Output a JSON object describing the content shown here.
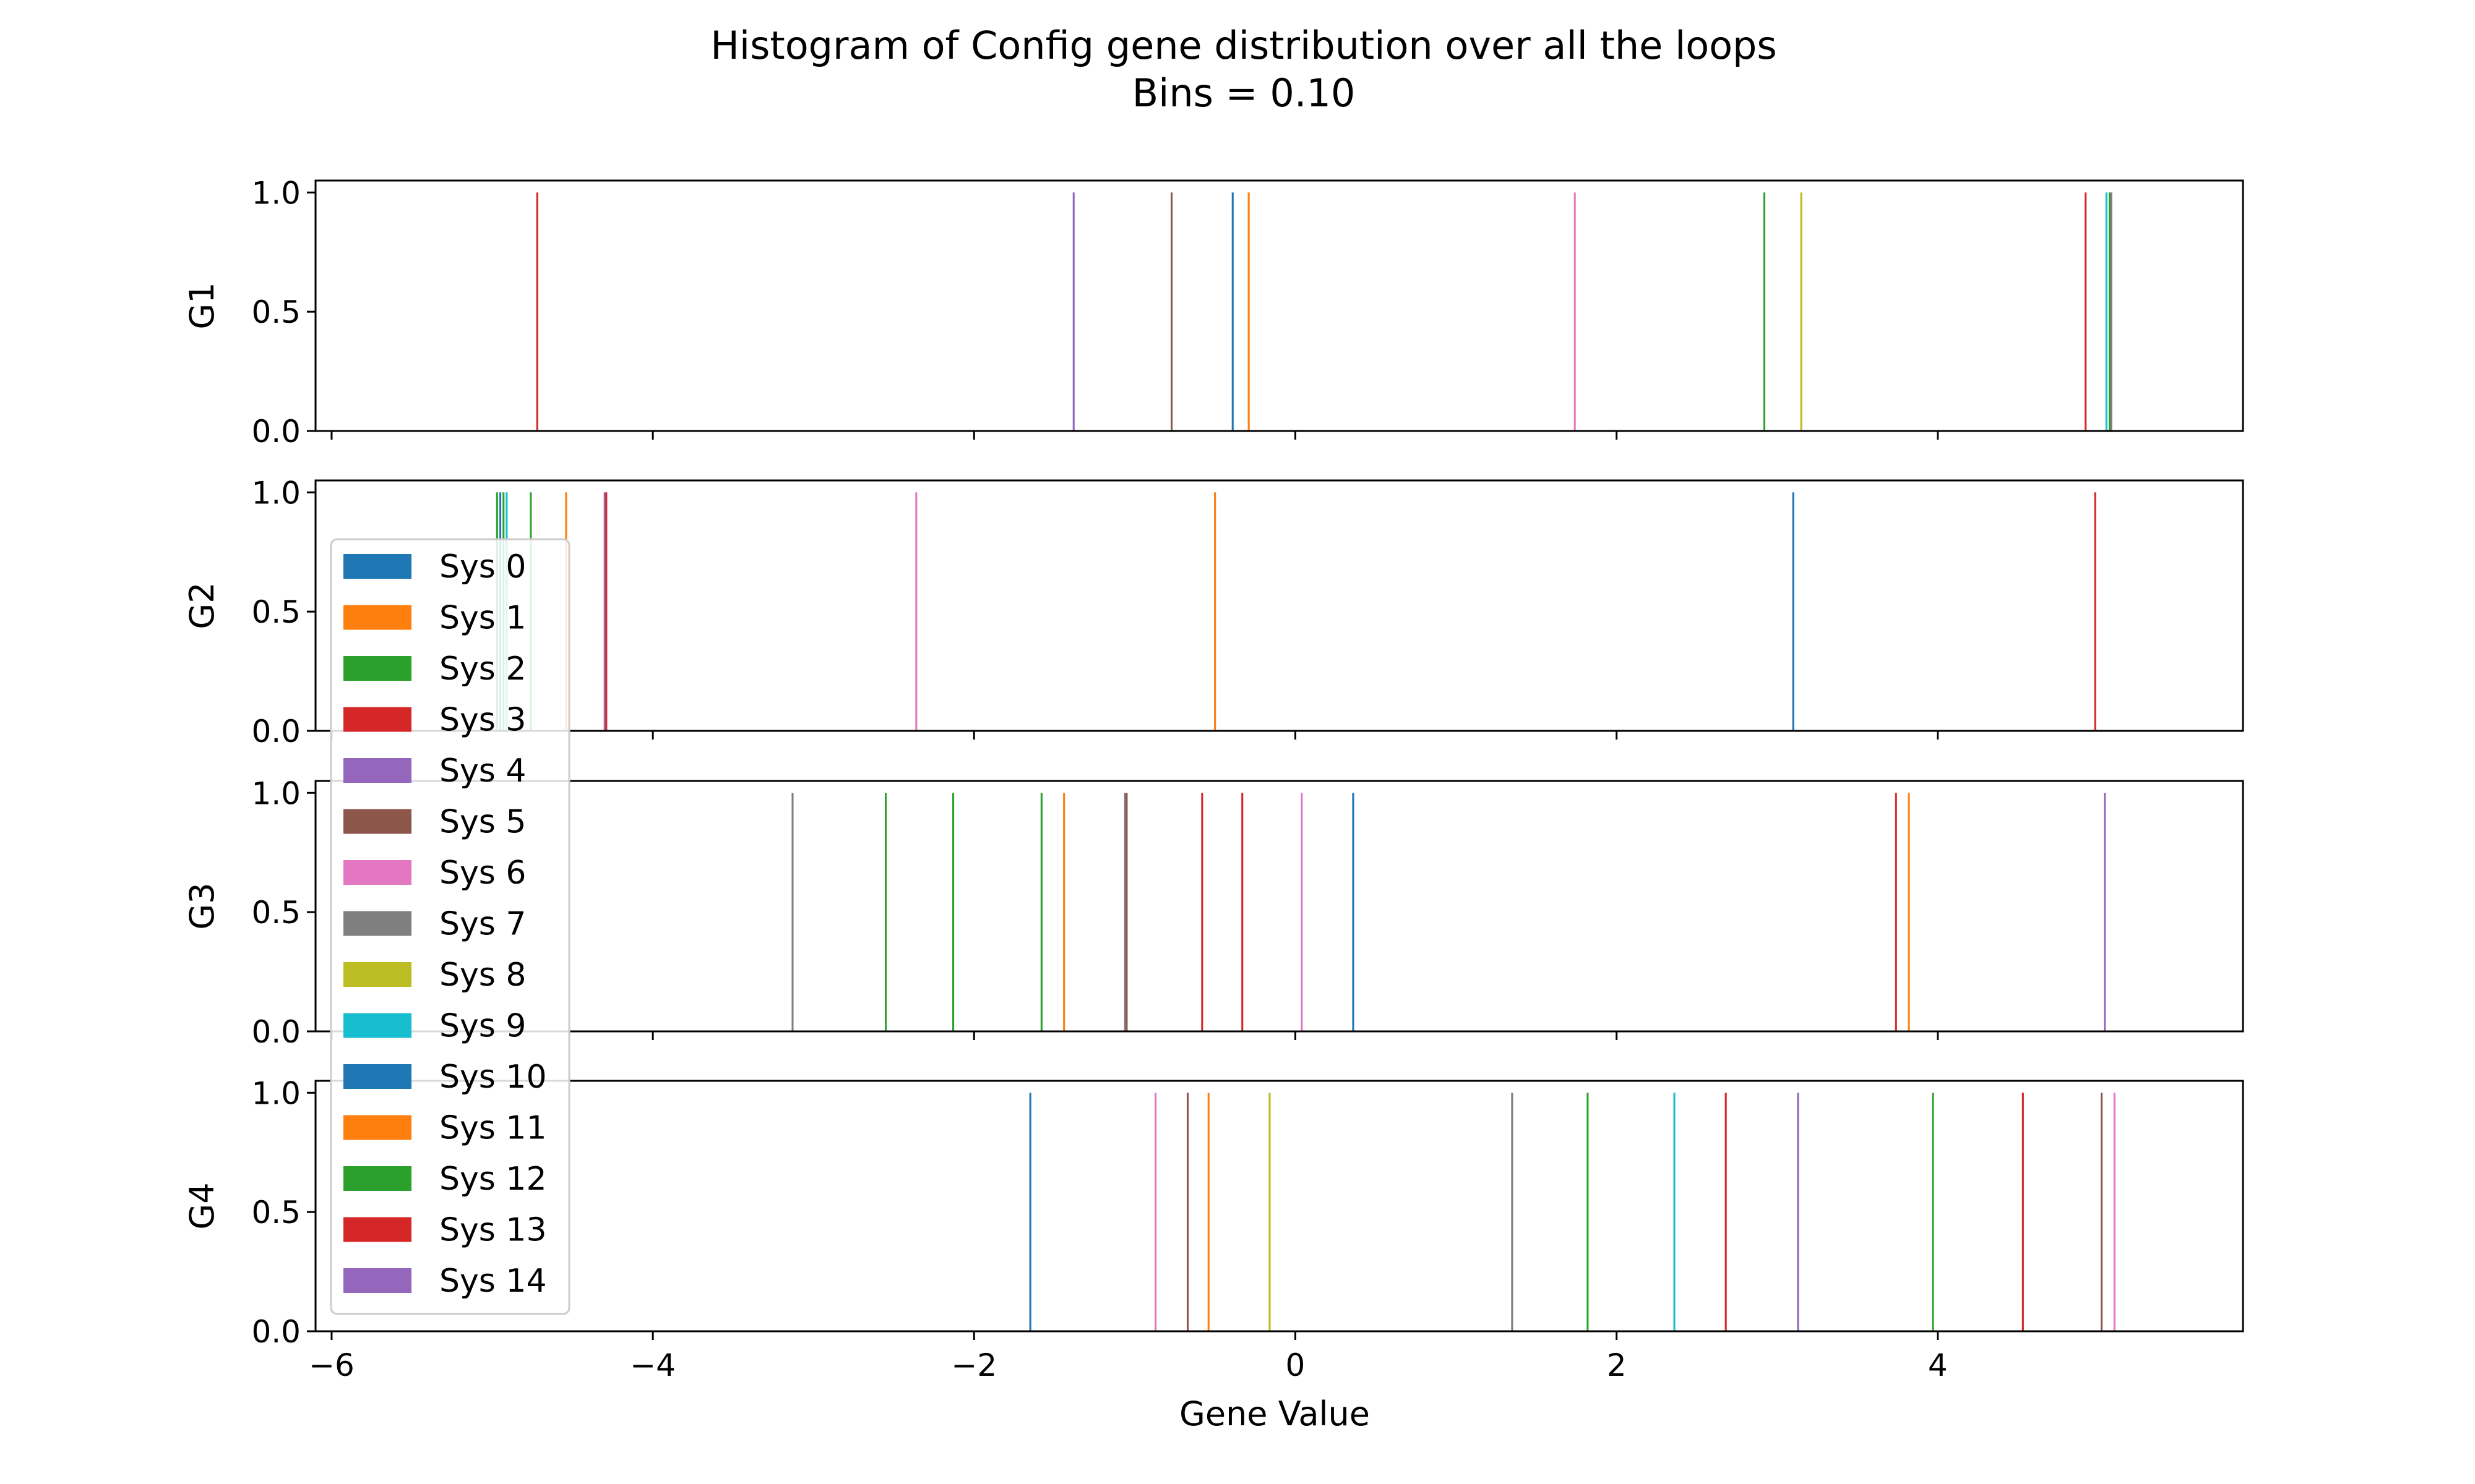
{
  "chart_data": {
    "type": "histogram",
    "title": "Histogram of Config gene distribution over all the loops",
    "subtitle": "Bins = 0.10",
    "xlabel": "Gene Value",
    "xlim": [
      -6.1,
      5.9
    ],
    "ylim": [
      0,
      1.05
    ],
    "x_ticks": [
      -6,
      -4,
      -2,
      0,
      2,
      4
    ],
    "x_tick_labels": [
      "−6",
      "−4",
      "−2",
      "0",
      "2",
      "4"
    ],
    "y_ticks": [
      0,
      0.5,
      1.0
    ],
    "y_tick_labels": [
      "0.0",
      "0.5",
      "1.0"
    ],
    "legend_placement": "left",
    "series": [
      {
        "name": "Sys 0",
        "color": "#1f77b4"
      },
      {
        "name": "Sys 1",
        "color": "#ff7f0e"
      },
      {
        "name": "Sys 2",
        "color": "#2ca02c"
      },
      {
        "name": "Sys 3",
        "color": "#d62728"
      },
      {
        "name": "Sys 4",
        "color": "#9467bd"
      },
      {
        "name": "Sys 5",
        "color": "#8c564b"
      },
      {
        "name": "Sys 6",
        "color": "#e377c2"
      },
      {
        "name": "Sys 7",
        "color": "#7f7f7f"
      },
      {
        "name": "Sys 8",
        "color": "#bcbd22"
      },
      {
        "name": "Sys 9",
        "color": "#17becf"
      },
      {
        "name": "Sys 10",
        "color": "#1f77b4"
      },
      {
        "name": "Sys 11",
        "color": "#ff7f0e"
      },
      {
        "name": "Sys 12",
        "color": "#2ca02c"
      },
      {
        "name": "Sys 13",
        "color": "#d62728"
      },
      {
        "name": "Sys 14",
        "color": "#9467bd"
      }
    ],
    "subplots": [
      {
        "ylabel": "G1",
        "values": [
          {
            "series": 3,
            "x": -4.72,
            "count": 1
          },
          {
            "series": 4,
            "x": -1.38,
            "count": 1
          },
          {
            "series": 5,
            "x": -0.77,
            "count": 1
          },
          {
            "series": 0,
            "x": -0.39,
            "count": 1
          },
          {
            "series": 1,
            "x": -0.29,
            "count": 1
          },
          {
            "series": 6,
            "x": 1.74,
            "count": 1
          },
          {
            "series": 2,
            "x": 2.92,
            "count": 1
          },
          {
            "series": 8,
            "x": 3.15,
            "count": 1
          },
          {
            "series": 13,
            "x": 4.92,
            "count": 1
          },
          {
            "series": 9,
            "x": 5.05,
            "count": 1
          },
          {
            "series": 12,
            "x": 5.07,
            "count": 1
          },
          {
            "series": 7,
            "x": 5.08,
            "count": 1
          }
        ]
      },
      {
        "ylabel": "G2",
        "values": [
          {
            "series": 2,
            "x": -4.97,
            "count": 1
          },
          {
            "series": 0,
            "x": -4.95,
            "count": 1
          },
          {
            "series": 12,
            "x": -4.93,
            "count": 1
          },
          {
            "series": 9,
            "x": -4.91,
            "count": 1
          },
          {
            "series": 2,
            "x": -4.76,
            "count": 1
          },
          {
            "series": 1,
            "x": -4.54,
            "count": 1
          },
          {
            "series": 4,
            "x": -4.3,
            "count": 1
          },
          {
            "series": 3,
            "x": -4.29,
            "count": 1
          },
          {
            "series": 6,
            "x": -2.36,
            "count": 1
          },
          {
            "series": 1,
            "x": -0.5,
            "count": 1
          },
          {
            "series": 0,
            "x": 3.1,
            "count": 1
          },
          {
            "series": 13,
            "x": 4.98,
            "count": 1
          }
        ]
      },
      {
        "ylabel": "G3",
        "values": [
          {
            "series": 7,
            "x": -3.13,
            "count": 1
          },
          {
            "series": 2,
            "x": -2.55,
            "count": 1
          },
          {
            "series": 12,
            "x": -2.13,
            "count": 1
          },
          {
            "series": 2,
            "x": -1.58,
            "count": 1
          },
          {
            "series": 1,
            "x": -1.44,
            "count": 1
          },
          {
            "series": 7,
            "x": -1.06,
            "count": 1
          },
          {
            "series": 5,
            "x": -1.05,
            "count": 1
          },
          {
            "series": 3,
            "x": -0.58,
            "count": 1
          },
          {
            "series": 13,
            "x": -0.33,
            "count": 1
          },
          {
            "series": 6,
            "x": 0.04,
            "count": 1
          },
          {
            "series": 0,
            "x": 0.36,
            "count": 1
          },
          {
            "series": 13,
            "x": 3.74,
            "count": 1
          },
          {
            "series": 1,
            "x": 3.82,
            "count": 1
          },
          {
            "series": 4,
            "x": 5.04,
            "count": 1
          }
        ]
      },
      {
        "ylabel": "G4",
        "values": [
          {
            "series": 0,
            "x": -1.65,
            "count": 1
          },
          {
            "series": 6,
            "x": -0.87,
            "count": 1
          },
          {
            "series": 5,
            "x": -0.67,
            "count": 1
          },
          {
            "series": 1,
            "x": -0.54,
            "count": 1
          },
          {
            "series": 8,
            "x": -0.16,
            "count": 1
          },
          {
            "series": 7,
            "x": 1.35,
            "count": 1
          },
          {
            "series": 2,
            "x": 1.82,
            "count": 1
          },
          {
            "series": 9,
            "x": 2.36,
            "count": 1
          },
          {
            "series": 3,
            "x": 2.68,
            "count": 1
          },
          {
            "series": 4,
            "x": 3.13,
            "count": 1
          },
          {
            "series": 12,
            "x": 3.97,
            "count": 1
          },
          {
            "series": 13,
            "x": 4.53,
            "count": 1
          },
          {
            "series": 5,
            "x": 5.02,
            "count": 1
          },
          {
            "series": 6,
            "x": 5.1,
            "count": 1
          }
        ]
      }
    ]
  }
}
